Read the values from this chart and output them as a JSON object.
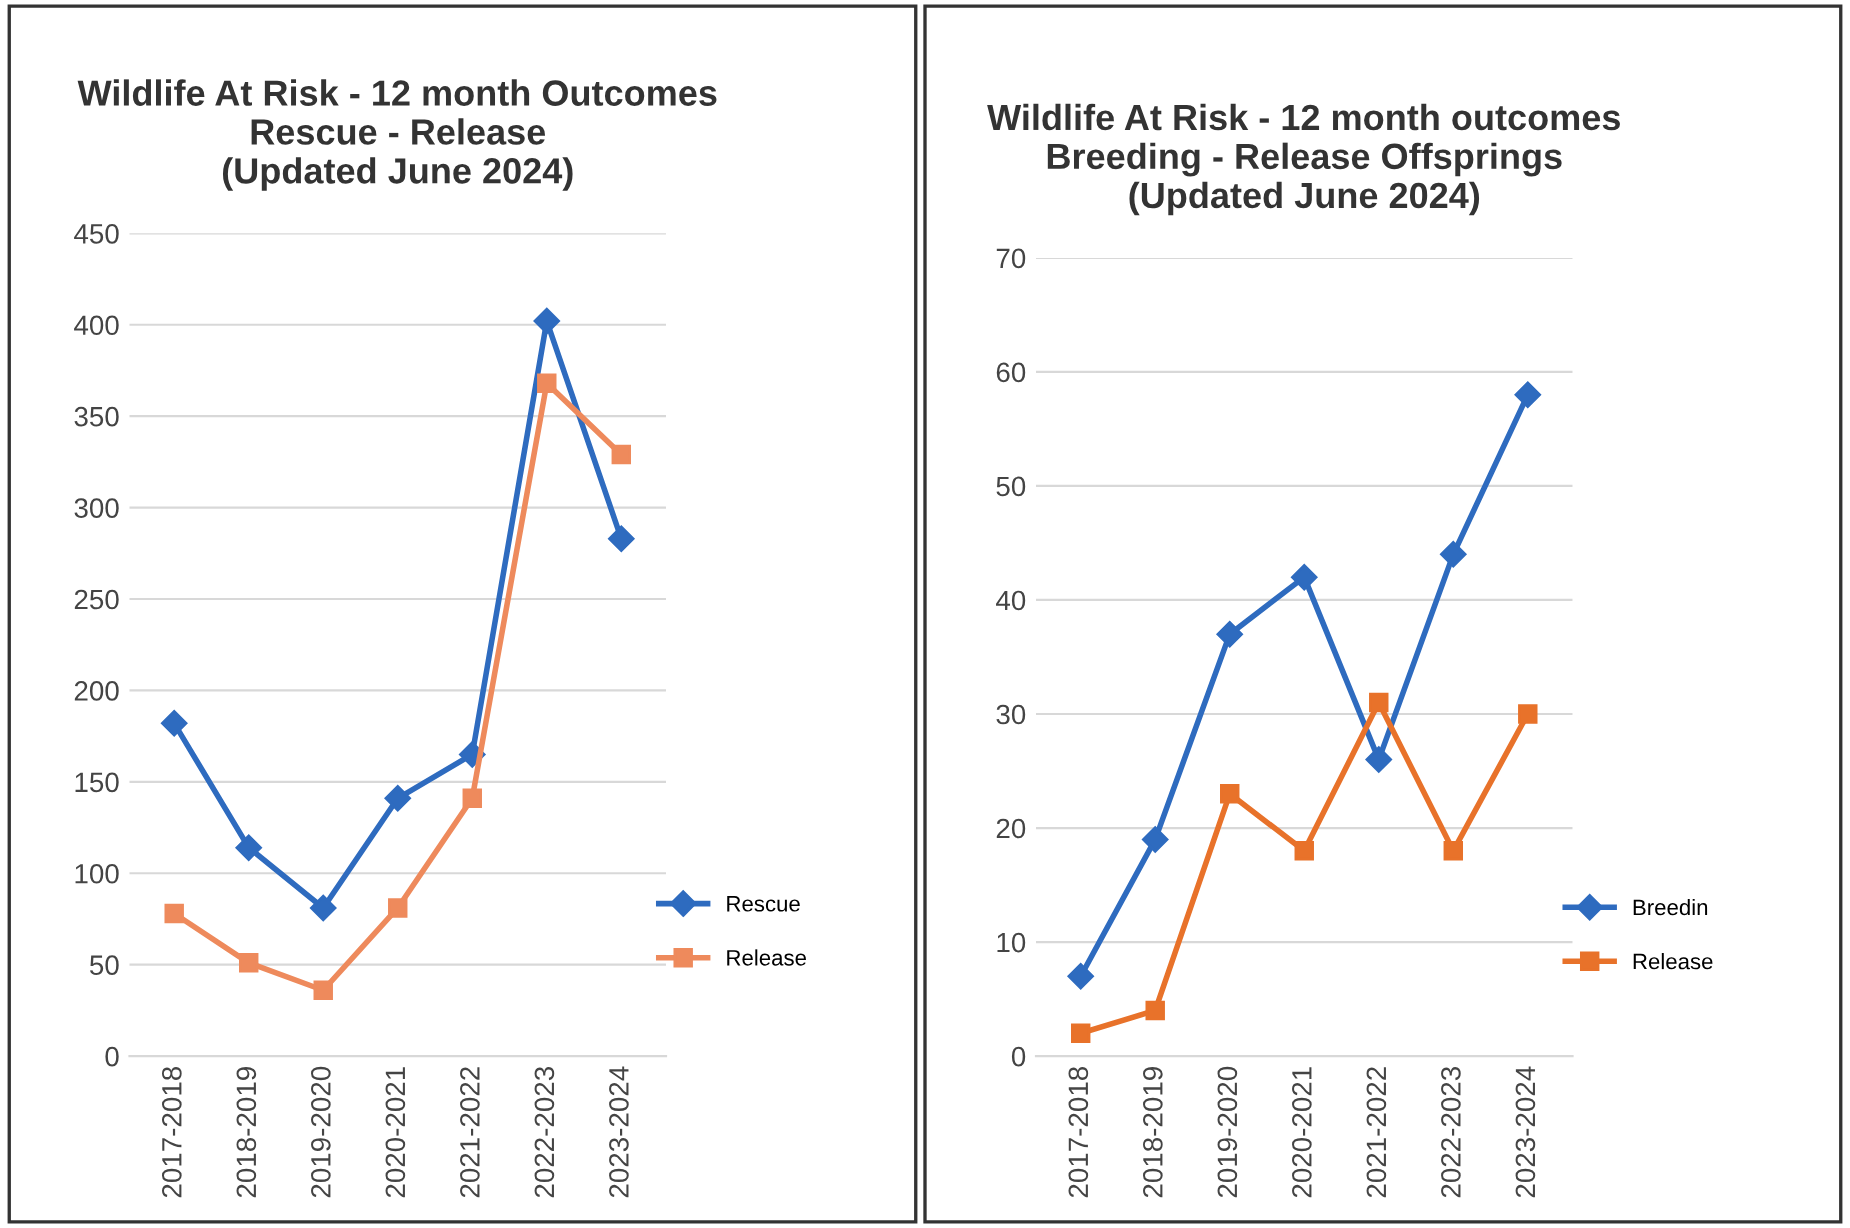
{
  "chart_data": [
    {
      "type": "line",
      "title": "Wildlife At Risk - 12 month Outcomes\nRescue - Release\n(Updated June 2024)",
      "categories": [
        "2017-2018",
        "2018-2019",
        "2019-2020",
        "2020-2021",
        "2021-2022",
        "2022-2023",
        "2023-2024"
      ],
      "series": [
        {
          "name": "Rescue",
          "color": "#2e6bbf",
          "marker": "diamond",
          "values": [
            182,
            114,
            81,
            141,
            165,
            402,
            283
          ]
        },
        {
          "name": "Release",
          "color": "#ee8a5c",
          "marker": "square",
          "values": [
            78,
            51,
            36,
            81,
            141,
            368,
            329
          ]
        }
      ],
      "ylim": [
        0,
        450
      ],
      "yticks": [
        0,
        50,
        100,
        150,
        200,
        250,
        300,
        350,
        400,
        450
      ],
      "grid": "y",
      "legend": "right"
    },
    {
      "type": "line",
      "title": "Wildlife At Risk - 12 month outcomes\nBreeding - Release Offsprings\n(Updated June 2024)",
      "categories": [
        "2017-2018",
        "2018-2019",
        "2019-2020",
        "2020-2021",
        "2021-2022",
        "2022-2023",
        "2023-2024"
      ],
      "series": [
        {
          "name": "Breedin",
          "color": "#2e6bbf",
          "marker": "diamond",
          "values": [
            7,
            19,
            37,
            42,
            26,
            44,
            58
          ]
        },
        {
          "name": "Release",
          "color": "#e8722a",
          "marker": "square",
          "values": [
            2,
            4,
            23,
            18,
            31,
            18,
            30
          ]
        }
      ],
      "ylim": [
        0,
        70
      ],
      "yticks": [
        0,
        10,
        20,
        30,
        40,
        50,
        60,
        70
      ],
      "grid": "y",
      "legend": "right"
    }
  ]
}
